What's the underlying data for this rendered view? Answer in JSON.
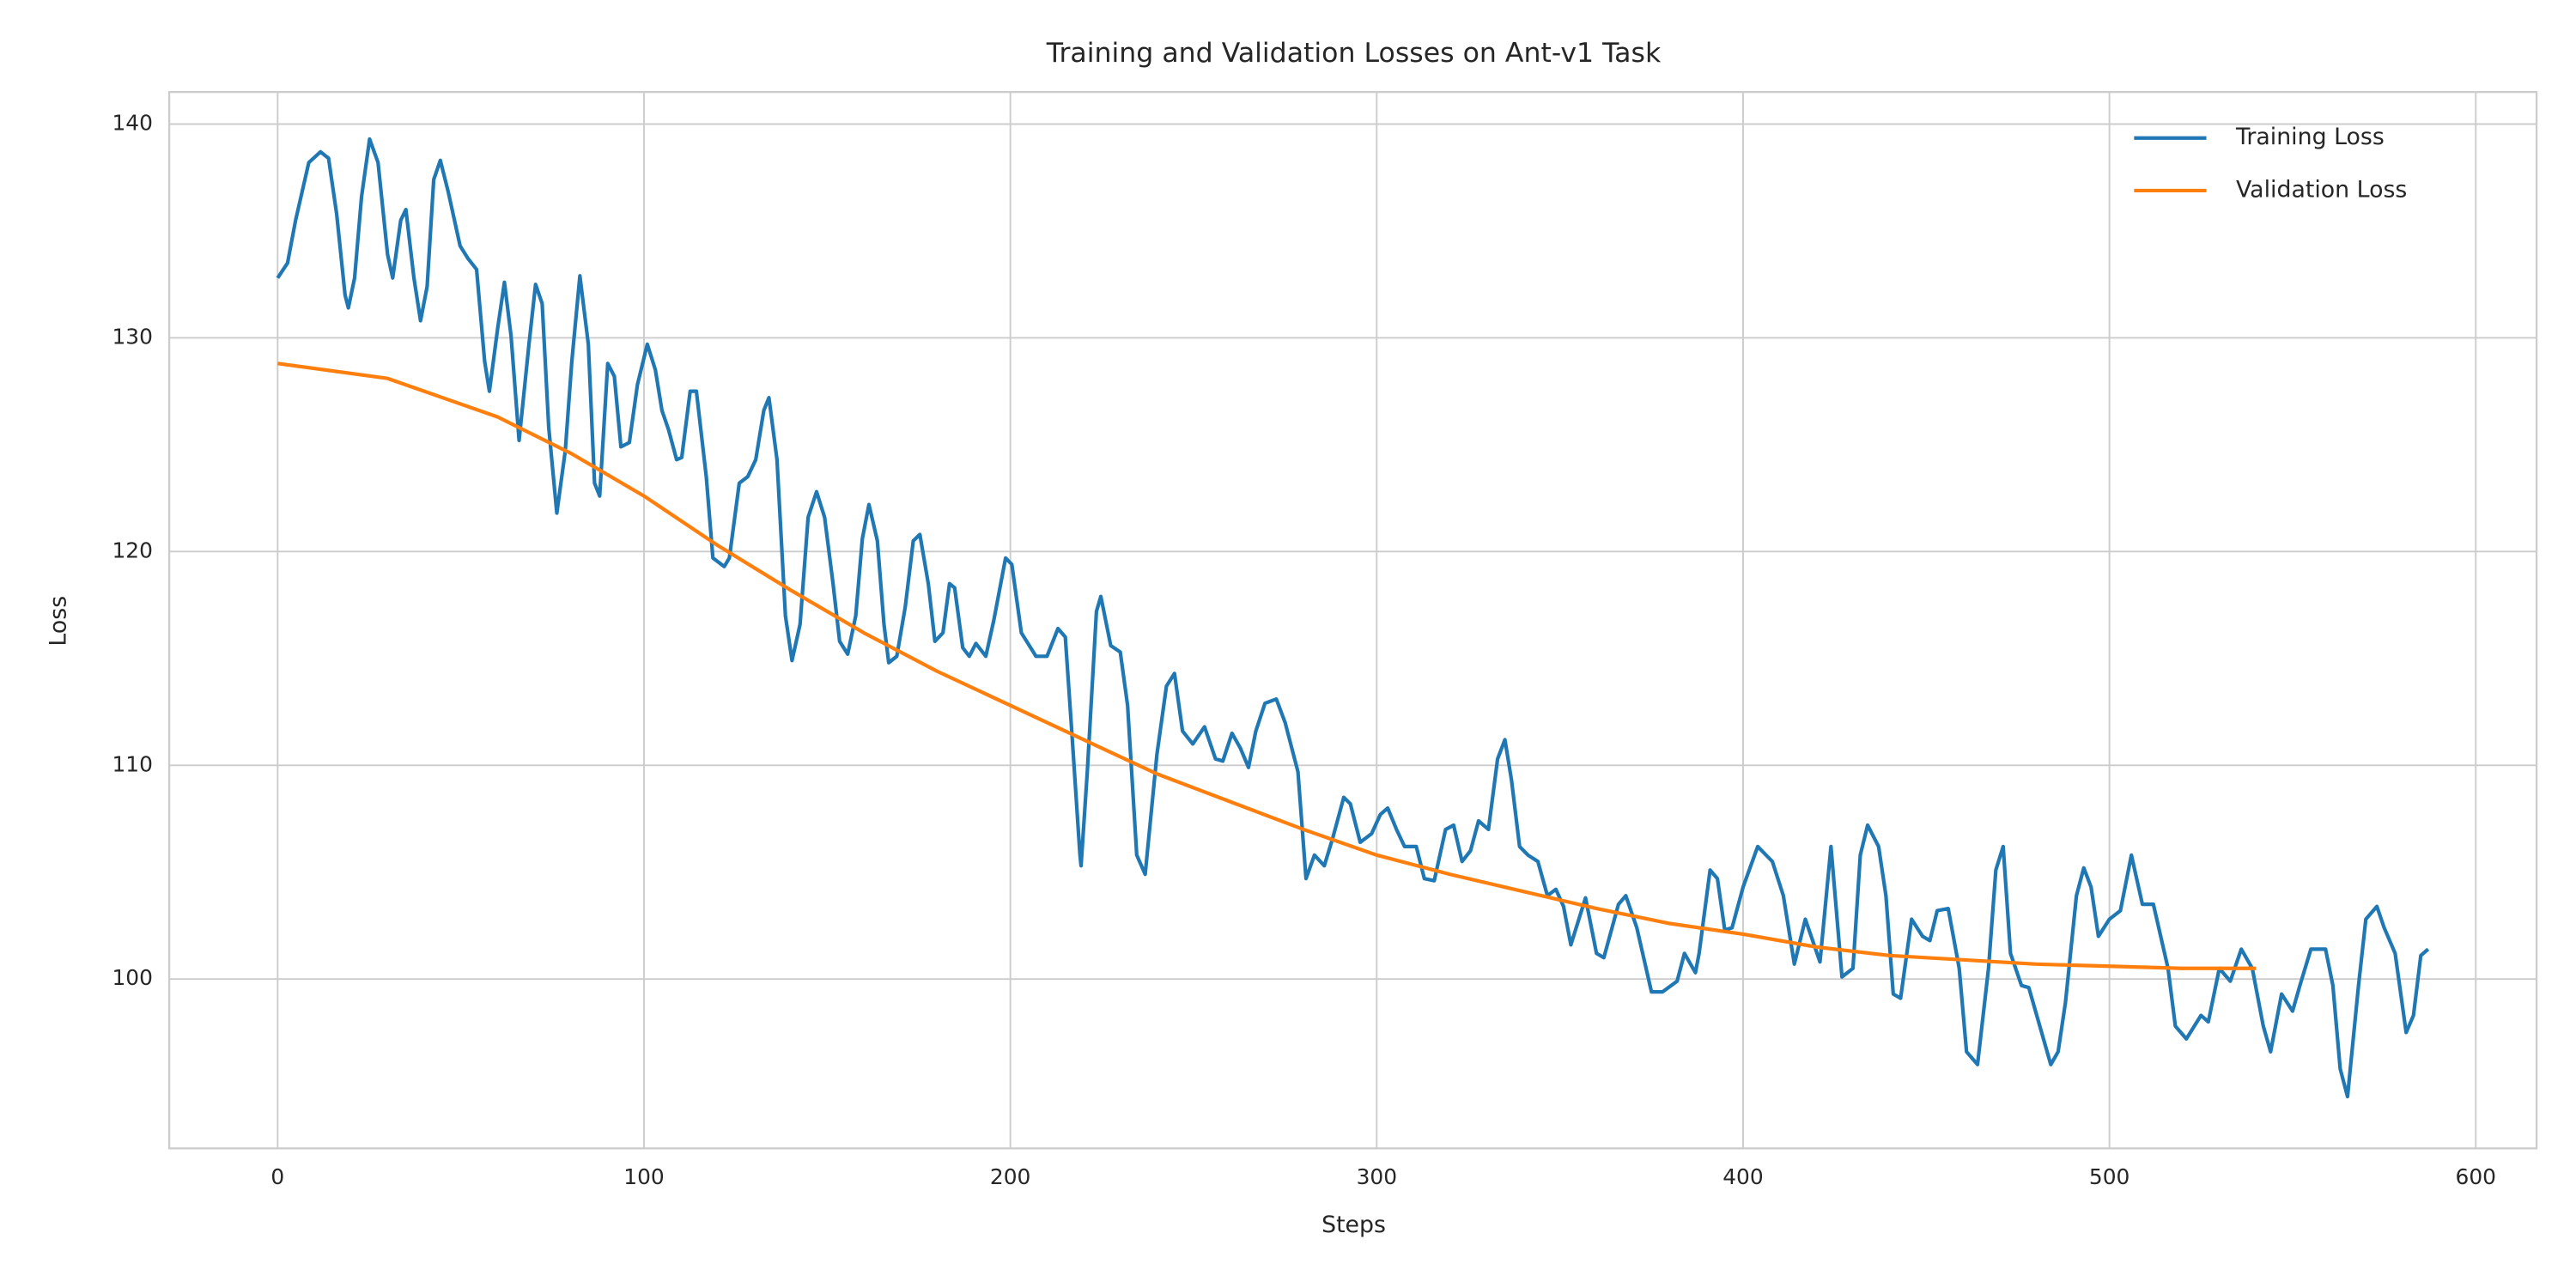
{
  "chart_data": {
    "type": "line",
    "title": "Training and Validation Losses on Ant-v1 Task",
    "xlabel": "Steps",
    "ylabel": "Loss",
    "xlim": [
      -29.6,
      616.6
    ],
    "ylim": [
      92.08,
      141.5
    ],
    "xticks": [
      0,
      100,
      200,
      300,
      400,
      500,
      600
    ],
    "yticks": [
      100,
      110,
      120,
      130,
      140
    ],
    "grid": true,
    "legend": "upper right",
    "series": [
      {
        "name": "Training Loss",
        "color": "#1f77b4",
        "x": [
          0,
          2.7,
          4.9,
          8.5,
          11.7,
          13.9,
          16.1,
          18.4,
          19.3,
          21,
          22.9,
          25.1,
          27.4,
          30,
          31.4,
          33.6,
          35,
          37.2,
          39,
          40.8,
          42.6,
          44.4,
          46.6,
          49.8,
          52,
          54.3,
          56.5,
          57.8,
          60.1,
          61.9,
          63.7,
          65.9,
          68.6,
          70.4,
          72.2,
          74,
          76.2,
          78.5,
          80.3,
          82.5,
          84.8,
          86.5,
          87.9,
          90.1,
          91.9,
          93.7,
          96,
          98.2,
          100.9,
          103.1,
          104.9,
          106.7,
          108.9,
          110.3,
          112.6,
          114.3,
          117,
          118.8,
          121.9,
          123.3,
          126,
          128.3,
          130.5,
          132.7,
          134.1,
          136.3,
          138.6,
          140.4,
          142.6,
          144.8,
          147.1,
          149.3,
          151.6,
          153.4,
          155.6,
          157.8,
          159.6,
          161.4,
          163.7,
          165.5,
          166.8,
          169,
          171.3,
          173.5,
          175.3,
          177.6,
          179.4,
          181.6,
          183.4,
          184.8,
          187,
          188.8,
          190.6,
          193.3,
          195.5,
          198.7,
          200.4,
          203,
          207,
          210,
          213,
          215,
          216.6,
          219,
          219.3,
          221,
          223.5,
          224.7,
          227.4,
          230,
          232,
          234.5,
          236.8,
          240,
          242.6,
          244.8,
          247,
          249.8,
          253,
          256,
          258,
          260.5,
          262.8,
          265,
          267,
          269.5,
          272.6,
          275,
          278.5,
          280.7,
          283,
          285.7,
          288,
          291,
          292.8,
          295.5,
          298.6,
          301,
          303,
          305.4,
          307.6,
          310.8,
          313,
          315.7,
          318.8,
          321,
          323.3,
          325.6,
          327.8,
          330.5,
          333,
          335,
          336.8,
          339,
          341.3,
          344,
          346.6,
          348.9,
          351,
          353,
          357,
          360,
          362,
          366,
          368,
          371,
          375,
          378,
          382,
          384,
          387,
          388,
          391,
          393,
          395,
          397,
          400,
          404,
          408,
          411,
          414,
          417,
          421,
          424,
          427,
          430,
          432,
          434,
          437,
          439,
          441,
          443,
          446,
          449,
          451,
          453,
          456,
          459,
          461,
          464,
          467,
          469,
          471,
          473,
          476,
          478,
          481,
          484,
          486,
          488,
          491,
          493,
          495,
          497,
          500,
          503,
          506,
          509,
          512,
          516,
          518,
          521,
          525,
          527,
          530,
          533,
          536,
          539,
          542,
          544,
          547,
          550,
          552,
          555,
          559,
          561,
          563,
          565,
          568,
          570,
          573,
          575,
          578,
          581,
          583,
          585,
          587
        ],
        "values": [
          132.8,
          133.5,
          135.5,
          138.2,
          138.7,
          138.4,
          135.8,
          132,
          131.4,
          132.8,
          136.6,
          139.3,
          138.2,
          133.9,
          132.8,
          135.5,
          136,
          132.8,
          130.8,
          132.4,
          137.4,
          138.3,
          136.8,
          134.3,
          133.7,
          133.2,
          128.9,
          127.5,
          130.5,
          132.6,
          130.1,
          125.2,
          129.7,
          132.5,
          131.6,
          125.8,
          121.8,
          124.7,
          128.9,
          132.9,
          129.7,
          123.2,
          122.6,
          128.8,
          128.2,
          124.9,
          125.1,
          127.8,
          129.7,
          128.5,
          126.6,
          125.7,
          124.3,
          124.4,
          127.5,
          127.5,
          123.5,
          119.7,
          119.3,
          119.7,
          123.2,
          123.5,
          124.3,
          126.6,
          127.2,
          124.3,
          117,
          114.9,
          116.6,
          121.6,
          122.8,
          121.6,
          118.5,
          115.8,
          115.2,
          117,
          120.6,
          122.2,
          120.5,
          116.6,
          114.8,
          115.1,
          117.4,
          120.5,
          120.8,
          118.5,
          115.8,
          116.2,
          118.5,
          118.3,
          115.5,
          115.1,
          115.7,
          115.1,
          116.8,
          119.7,
          119.4,
          116.2,
          115.1,
          115.1,
          116.4,
          116,
          112,
          105.8,
          105.3,
          109.7,
          117.2,
          117.9,
          115.6,
          115.3,
          112.8,
          105.8,
          104.9,
          110.5,
          113.7,
          114.3,
          111.6,
          111,
          111.8,
          110.3,
          110.2,
          111.5,
          110.8,
          109.9,
          111.6,
          112.9,
          113.1,
          112,
          109.7,
          104.7,
          105.8,
          105.3,
          106.6,
          108.5,
          108.2,
          106.4,
          106.8,
          107.7,
          108,
          107,
          106.2,
          106.2,
          104.7,
          104.6,
          107,
          107.2,
          105.5,
          106,
          107.4,
          107,
          110.3,
          111.2,
          109.3,
          106.2,
          105.8,
          105.5,
          103.9,
          104.2,
          103.4,
          101.6,
          103.8,
          101.2,
          101,
          103.5,
          103.9,
          102.4,
          99.4,
          99.4,
          99.9,
          101.2,
          100.3,
          101.2,
          105.1,
          104.7,
          102.3,
          102.4,
          104.3,
          106.2,
          105.5,
          103.9,
          100.7,
          102.8,
          100.8,
          106.2,
          100.1,
          100.5,
          105.8,
          107.2,
          106.2,
          103.9,
          99.3,
          99.1,
          102.8,
          102,
          101.8,
          103.2,
          103.3,
          100.5,
          96.6,
          96,
          100.5,
          105.1,
          106.2,
          101.2,
          99.7,
          99.6,
          97.8,
          96,
          96.6,
          98.9,
          103.9,
          105.2,
          104.3,
          102,
          102.8,
          103.2,
          105.8,
          103.5,
          103.5,
          100.5,
          97.8,
          97.2,
          98.3,
          98,
          100.5,
          99.9,
          101.4,
          100.5,
          97.8,
          96.6,
          99.3,
          98.5,
          99.7,
          101.4,
          101.4,
          99.7,
          95.8,
          94.5,
          99.7,
          102.8,
          103.4,
          102.4,
          101.2,
          97.5,
          98.3,
          101.1,
          101.4
        ]
      },
      {
        "name": "Validation Loss",
        "color": "#ff7f0e",
        "x": [
          0,
          30,
          60,
          80,
          100,
          120,
          140,
          160,
          180,
          200,
          220,
          240,
          260,
          280,
          300,
          320,
          340,
          360,
          380,
          400,
          420,
          440,
          460,
          480,
          500,
          520,
          540
        ],
        "values": [
          128.8,
          128.1,
          126.3,
          124.6,
          122.6,
          120.3,
          118.2,
          116.2,
          114.4,
          112.8,
          111.2,
          109.6,
          108.3,
          107,
          105.8,
          104.9,
          104.1,
          103.3,
          102.6,
          102.1,
          101.5,
          101.1,
          100.9,
          100.7,
          100.6,
          100.5,
          100.5
        ]
      }
    ]
  }
}
